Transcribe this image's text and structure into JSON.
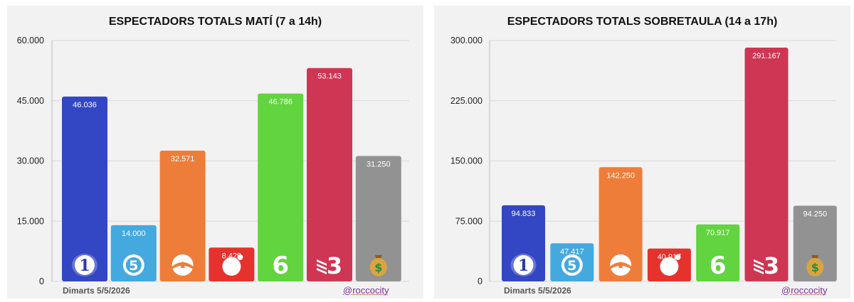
{
  "charts": [
    {
      "type": "bar",
      "title": "ESPECTADORS TOTALS MATÍ (7 a 14h)",
      "categories": [
        "La 1",
        "Telecinco",
        "Antena 3",
        "Cuatro",
        "laSexta",
        "TV3",
        "Altres"
      ],
      "icons": [
        "la1-logo-icon",
        "telecinco-logo-icon",
        "antena3-logo-icon",
        "cuatro-logo-icon",
        "lasexta-logo-icon",
        "tv3-logo-icon",
        "money-bag-icon"
      ],
      "colors": [
        "#3346c4",
        "#44a9df",
        "#ef7d3a",
        "#e5322d",
        "#62d43f",
        "#cf3653",
        "#929292"
      ],
      "values": [
        46036,
        14000,
        32571,
        8429,
        46786,
        53143,
        31250
      ],
      "value_labels": [
        "46.036",
        "14.000",
        "32.571",
        "8.429",
        "46.786",
        "53.143",
        "31.250"
      ],
      "ylim": [
        0,
        60000
      ],
      "yticks": [
        0,
        15000,
        30000,
        45000,
        60000
      ],
      "ytick_labels": [
        "0",
        "15.000",
        "30.000",
        "45.000",
        "60.000"
      ],
      "grid": true,
      "footer_date": "Dimarts 5/5/2026",
      "footer_handle": "@roccocity"
    },
    {
      "type": "bar",
      "title": "ESPECTADORS TOTALS SOBRETAULA (14 a 17h)",
      "categories": [
        "La 1",
        "Telecinco",
        "Antena 3",
        "Cuatro",
        "laSexta",
        "TV3",
        "Altres"
      ],
      "icons": [
        "la1-logo-icon",
        "telecinco-logo-icon",
        "antena3-logo-icon",
        "cuatro-logo-icon",
        "lasexta-logo-icon",
        "tv3-logo-icon",
        "money-bag-icon"
      ],
      "colors": [
        "#3346c4",
        "#44a9df",
        "#ef7d3a",
        "#e5322d",
        "#62d43f",
        "#cf3653",
        "#929292"
      ],
      "values": [
        94833,
        47417,
        142250,
        40917,
        70917,
        291167,
        94250
      ],
      "value_labels": [
        "94.833",
        "47.417",
        "142.250",
        "40.917",
        "70.917",
        "291.167",
        "94.250"
      ],
      "ylim": [
        0,
        300000
      ],
      "yticks": [
        0,
        75000,
        150000,
        225000,
        300000
      ],
      "ytick_labels": [
        "0",
        "75.000",
        "150.000",
        "225.000",
        "300.000"
      ],
      "grid": true,
      "footer_date": "Dimarts 5/5/2026",
      "footer_handle": "@roccocity"
    }
  ]
}
